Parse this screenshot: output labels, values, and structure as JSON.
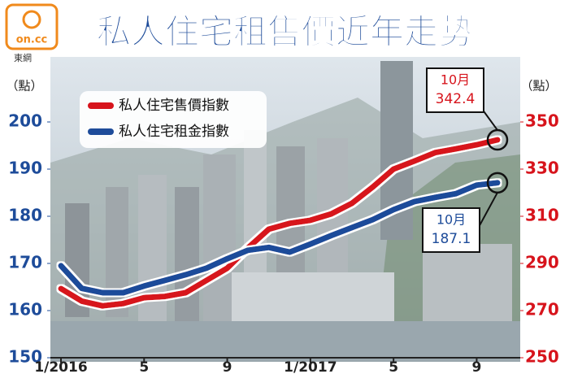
{
  "chart_data": {
    "type": "line",
    "title": "私人住宅租售價近年走勢",
    "logo": "on.cc",
    "source": "東網",
    "y_label": "（點）",
    "y2_label": "（點）",
    "categories": [
      "1/2016",
      null,
      null,
      null,
      "5",
      null,
      null,
      null,
      "9",
      null,
      null,
      null,
      "1/2017",
      null,
      null,
      null,
      "5",
      null,
      null,
      null,
      "9",
      null
    ],
    "ylim": [
      150,
      200
    ],
    "yticks": [
      150,
      160,
      170,
      180,
      190,
      200
    ],
    "y2lim": [
      250,
      350
    ],
    "y2ticks": [
      250,
      270,
      290,
      310,
      330,
      350
    ],
    "legend": "upper left",
    "series": [
      {
        "name": "私人住宅售價指數",
        "color": "#d7141c",
        "axis": "y2",
        "values": [
          279.3,
          274,
          272,
          273,
          275.5,
          276,
          277.6,
          282.8,
          288,
          296.6,
          304.5,
          307,
          308.3,
          311,
          315.5,
          322.4,
          330,
          333.4,
          337,
          338.6,
          340.3,
          342.4
        ]
      },
      {
        "name": "私人住宅租金指數",
        "color": "#1e4c9a",
        "axis": "y",
        "values": [
          169.5,
          164.7,
          163.8,
          163.8,
          165.2,
          166.4,
          167.6,
          169,
          171,
          172.8,
          173.4,
          172.4,
          174.1,
          175.9,
          177.6,
          179.3,
          181.4,
          183.1,
          184,
          184.8,
          186.6,
          187.1
        ]
      }
    ],
    "annotations": [
      {
        "series": 0,
        "month": "10月",
        "value": 342.4
      },
      {
        "series": 1,
        "month": "10月",
        "value": 187.1
      }
    ]
  }
}
